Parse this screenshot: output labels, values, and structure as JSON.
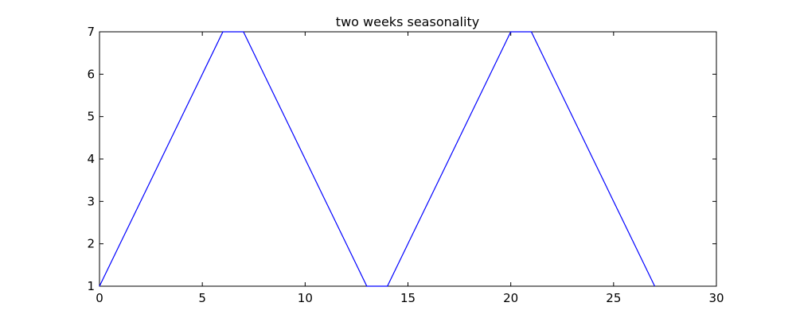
{
  "chart_data": {
    "type": "line",
    "title": "two weeks seasonality",
    "xlabel": "",
    "ylabel": "",
    "xlim": [
      0,
      30
    ],
    "ylim": [
      1,
      7
    ],
    "x_ticks": [
      0,
      5,
      10,
      15,
      20,
      25,
      30
    ],
    "y_ticks": [
      1,
      2,
      3,
      4,
      5,
      6,
      7
    ],
    "x_tick_labels": [
      "0",
      "5",
      "10",
      "15",
      "20",
      "25",
      "30"
    ],
    "y_tick_labels": [
      "1",
      "2",
      "3",
      "4",
      "5",
      "6",
      "7"
    ],
    "grid": false,
    "legend": "none",
    "series": [
      {
        "color": "#0000ff",
        "x": [
          0,
          1,
          2,
          3,
          4,
          5,
          6,
          7,
          8,
          9,
          10,
          11,
          12,
          13,
          14,
          15,
          16,
          17,
          18,
          19,
          20,
          21,
          22,
          23,
          24,
          25,
          26,
          27
        ],
        "y": [
          1,
          2,
          3,
          4,
          5,
          6,
          7,
          7,
          6,
          5,
          4,
          3,
          2,
          1,
          1,
          2,
          3,
          4,
          5,
          6,
          7,
          7,
          6,
          5,
          4,
          3,
          2,
          1
        ]
      }
    ]
  }
}
